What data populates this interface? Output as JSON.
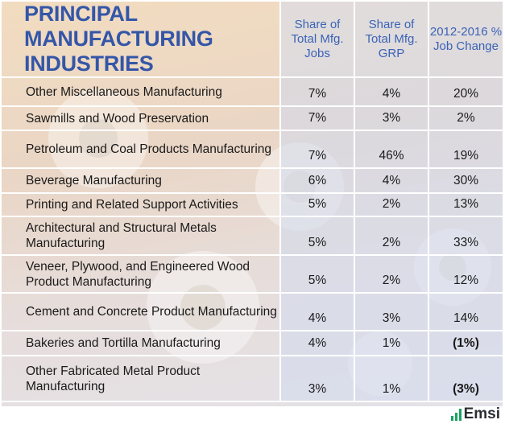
{
  "title": "PRINCIPAL MANUFACTURING INDUSTRIES",
  "columns": {
    "jobs": "Share of Total Mfg. Jobs",
    "grp": "Share of Total Mfg. GRP",
    "change": "2012-2016 % Job Change"
  },
  "rows": [
    {
      "name": "Other Miscellaneous Manufacturing",
      "jobs": "7%",
      "grp": "4%",
      "change": "20%",
      "negative": false
    },
    {
      "name": "Sawmills and Wood Preservation",
      "jobs": "7%",
      "grp": "3%",
      "change": "2%",
      "negative": false
    },
    {
      "name": "Petroleum and Coal Products Manufacturing",
      "jobs": "7%",
      "grp": "46%",
      "change": "19%",
      "negative": false
    },
    {
      "name": "Beverage Manufacturing",
      "jobs": "6%",
      "grp": "4%",
      "change": "30%",
      "negative": false
    },
    {
      "name": "Printing and Related Support Activities",
      "jobs": "5%",
      "grp": "2%",
      "change": "13%",
      "negative": false
    },
    {
      "name": "Architectural and Structural Metals Manufacturing",
      "jobs": "5%",
      "grp": "2%",
      "change": "33%",
      "negative": false
    },
    {
      "name": "Veneer, Plywood, and Engineered Wood Product Manufacturing",
      "jobs": "5%",
      "grp": "2%",
      "change": "12%",
      "negative": false
    },
    {
      "name": "Cement and Concrete Product Manufacturing",
      "jobs": "4%",
      "grp": "3%",
      "change": "14%",
      "negative": false
    },
    {
      "name": "Bakeries and Tortilla Manufacturing",
      "jobs": "4%",
      "grp": "1%",
      "change": "(1%)",
      "negative": true
    },
    {
      "name": "Other Fabricated Metal Product Manufacturing",
      "jobs": "3%",
      "grp": "1%",
      "change": "(3%)",
      "negative": true
    }
  ],
  "brand": "Emsi",
  "colors": {
    "title": "#3456a8",
    "header": "#3a63b7",
    "negative": "#d61f26",
    "brand_green": "#1ba262"
  }
}
